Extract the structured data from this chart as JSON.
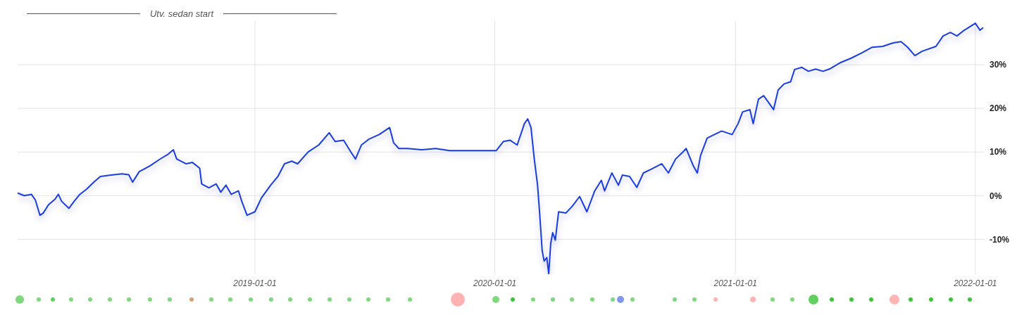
{
  "chart_data": {
    "type": "line",
    "title": "Utv. sedan start",
    "x": [
      "2018-01-05",
      "2018-01-15",
      "2018-01-26",
      "2018-02-01",
      "2018-02-08",
      "2018-02-13",
      "2018-02-21",
      "2018-03-03",
      "2018-03-08",
      "2018-03-13",
      "2018-03-24",
      "2018-04-01",
      "2018-04-09",
      "2018-04-20",
      "2018-05-01",
      "2018-05-11",
      "2018-05-27",
      "2018-06-13",
      "2018-06-23",
      "2018-06-29",
      "2018-07-09",
      "2018-07-25",
      "2018-08-11",
      "2018-08-22",
      "2018-08-30",
      "2018-09-04",
      "2018-09-18",
      "2018-09-28",
      "2018-10-09",
      "2018-10-12",
      "2018-10-23",
      "2018-11-03",
      "2018-11-10",
      "2018-11-18",
      "2018-11-26",
      "2018-12-07",
      "2018-12-12",
      "2018-12-20",
      "2019-01-01",
      "2019-01-11",
      "2019-01-25",
      "2019-02-05",
      "2019-02-15",
      "2019-02-26",
      "2019-03-07",
      "2019-03-23",
      "2019-04-08",
      "2019-04-24",
      "2019-05-03",
      "2019-05-16",
      "2019-05-27",
      "2019-06-03",
      "2019-06-12",
      "2019-06-23",
      "2019-07-09",
      "2019-07-17",
      "2019-07-25",
      "2019-07-31",
      "2019-08-08",
      "2019-08-21",
      "2019-09-12",
      "2019-10-03",
      "2019-10-24",
      "2019-11-04",
      "2020-01-03",
      "2020-01-14",
      "2020-01-24",
      "2020-02-04",
      "2020-02-15",
      "2020-02-20",
      "2020-02-25",
      "2020-03-01",
      "2020-03-06",
      "2020-03-09",
      "2020-03-13",
      "2020-03-16",
      "2020-03-20",
      "2020-03-23",
      "2020-03-26",
      "2020-03-29",
      "2020-04-02",
      "2020-04-07",
      "2020-04-18",
      "2020-04-28",
      "2020-05-09",
      "2020-05-20",
      "2020-06-01",
      "2020-06-11",
      "2020-06-16",
      "2020-06-27",
      "2020-07-07",
      "2020-07-13",
      "2020-07-24",
      "2020-08-04",
      "2020-08-14",
      "2020-08-25",
      "2020-09-11",
      "2020-09-21",
      "2020-10-02",
      "2020-10-13",
      "2020-10-18",
      "2020-10-29",
      "2020-11-04",
      "2020-11-09",
      "2020-11-19",
      "2020-11-30",
      "2020-12-11",
      "2020-12-27",
      "2021-01-05",
      "2021-01-12",
      "2021-01-23",
      "2021-01-28",
      "2021-02-05",
      "2021-02-13",
      "2021-02-23",
      "2021-02-28",
      "2021-03-07",
      "2021-03-16",
      "2021-03-26",
      "2021-04-01",
      "2021-04-12",
      "2021-04-22",
      "2021-05-03",
      "2021-05-14",
      "2021-05-24",
      "2021-06-10",
      "2021-06-26",
      "2021-07-12",
      "2021-07-28",
      "2021-08-13",
      "2021-08-29",
      "2021-09-10",
      "2021-09-20",
      "2021-10-01",
      "2021-10-12",
      "2021-11-02",
      "2021-11-13",
      "2021-11-24",
      "2021-12-04",
      "2021-12-15",
      "2022-01-01",
      "2022-01-08",
      "2022-01-13"
    ],
    "series": [
      {
        "color": "#1a3de0",
        "values": [
          0.6,
          0,
          0.3,
          -1,
          -4.5,
          -4,
          -2.1,
          -0.8,
          0.3,
          -1.3,
          -2.9,
          -1.3,
          0.2,
          1.5,
          3.1,
          4.4,
          4.7,
          5,
          4.8,
          3.1,
          5.5,
          6.8,
          8.5,
          9.5,
          10.5,
          8.4,
          7.3,
          7.6,
          6.3,
          2.7,
          1.8,
          2.7,
          0.8,
          2.4,
          0.3,
          1.1,
          -1.3,
          -4.5,
          -3.7,
          -0.5,
          2.4,
          4.4,
          7.3,
          7.9,
          7.3,
          10,
          11.6,
          14.4,
          12.4,
          12.7,
          10,
          8.4,
          11.6,
          12.9,
          14,
          14.8,
          15.6,
          12.1,
          10.8,
          10.8,
          10.5,
          10.8,
          10.3,
          10.3,
          10.3,
          12.4,
          12.7,
          11.6,
          16.5,
          17.6,
          15.6,
          8.4,
          2.4,
          -3.7,
          -12.6,
          -15,
          -14.2,
          -17.9,
          -11,
          -8.5,
          -10.2,
          -3.7,
          -4,
          -2.4,
          -0.2,
          -3.7,
          1.1,
          3.5,
          1.1,
          5.2,
          2.4,
          4.7,
          4.4,
          1.9,
          5.2,
          6,
          7.3,
          5.2,
          8.4,
          10,
          10.8,
          6.8,
          5.2,
          9.2,
          13.2,
          14,
          14.8,
          14,
          16.5,
          19.2,
          19.7,
          16.5,
          22.1,
          22.9,
          20.8,
          19.7,
          24.2,
          25.6,
          26.1,
          28.9,
          29.4,
          28.5,
          29,
          28.5,
          29,
          30.5,
          31.5,
          32.7,
          34,
          34.2,
          35,
          35.3,
          34,
          32.1,
          33.1,
          34.2,
          36.6,
          37.4,
          36.6,
          37.9,
          39.5,
          37.9,
          38.5
        ]
      }
    ],
    "xlim": [
      "2018-01-05",
      "2022-01-14"
    ],
    "xticks": [
      "2019-01-01",
      "2020-01-01",
      "2021-01-01",
      "2022-01-01"
    ],
    "ylim": [
      -18,
      40
    ],
    "yticks": [
      {
        "value": -10,
        "label": "-10%"
      },
      {
        "value": 0,
        "label": "0%"
      },
      {
        "value": 10,
        "label": "10%"
      },
      {
        "value": 20,
        "label": "20%"
      },
      {
        "value": 30,
        "label": "30%"
      }
    ],
    "grid": true,
    "marker": "none",
    "line_style": "solid"
  }
}
